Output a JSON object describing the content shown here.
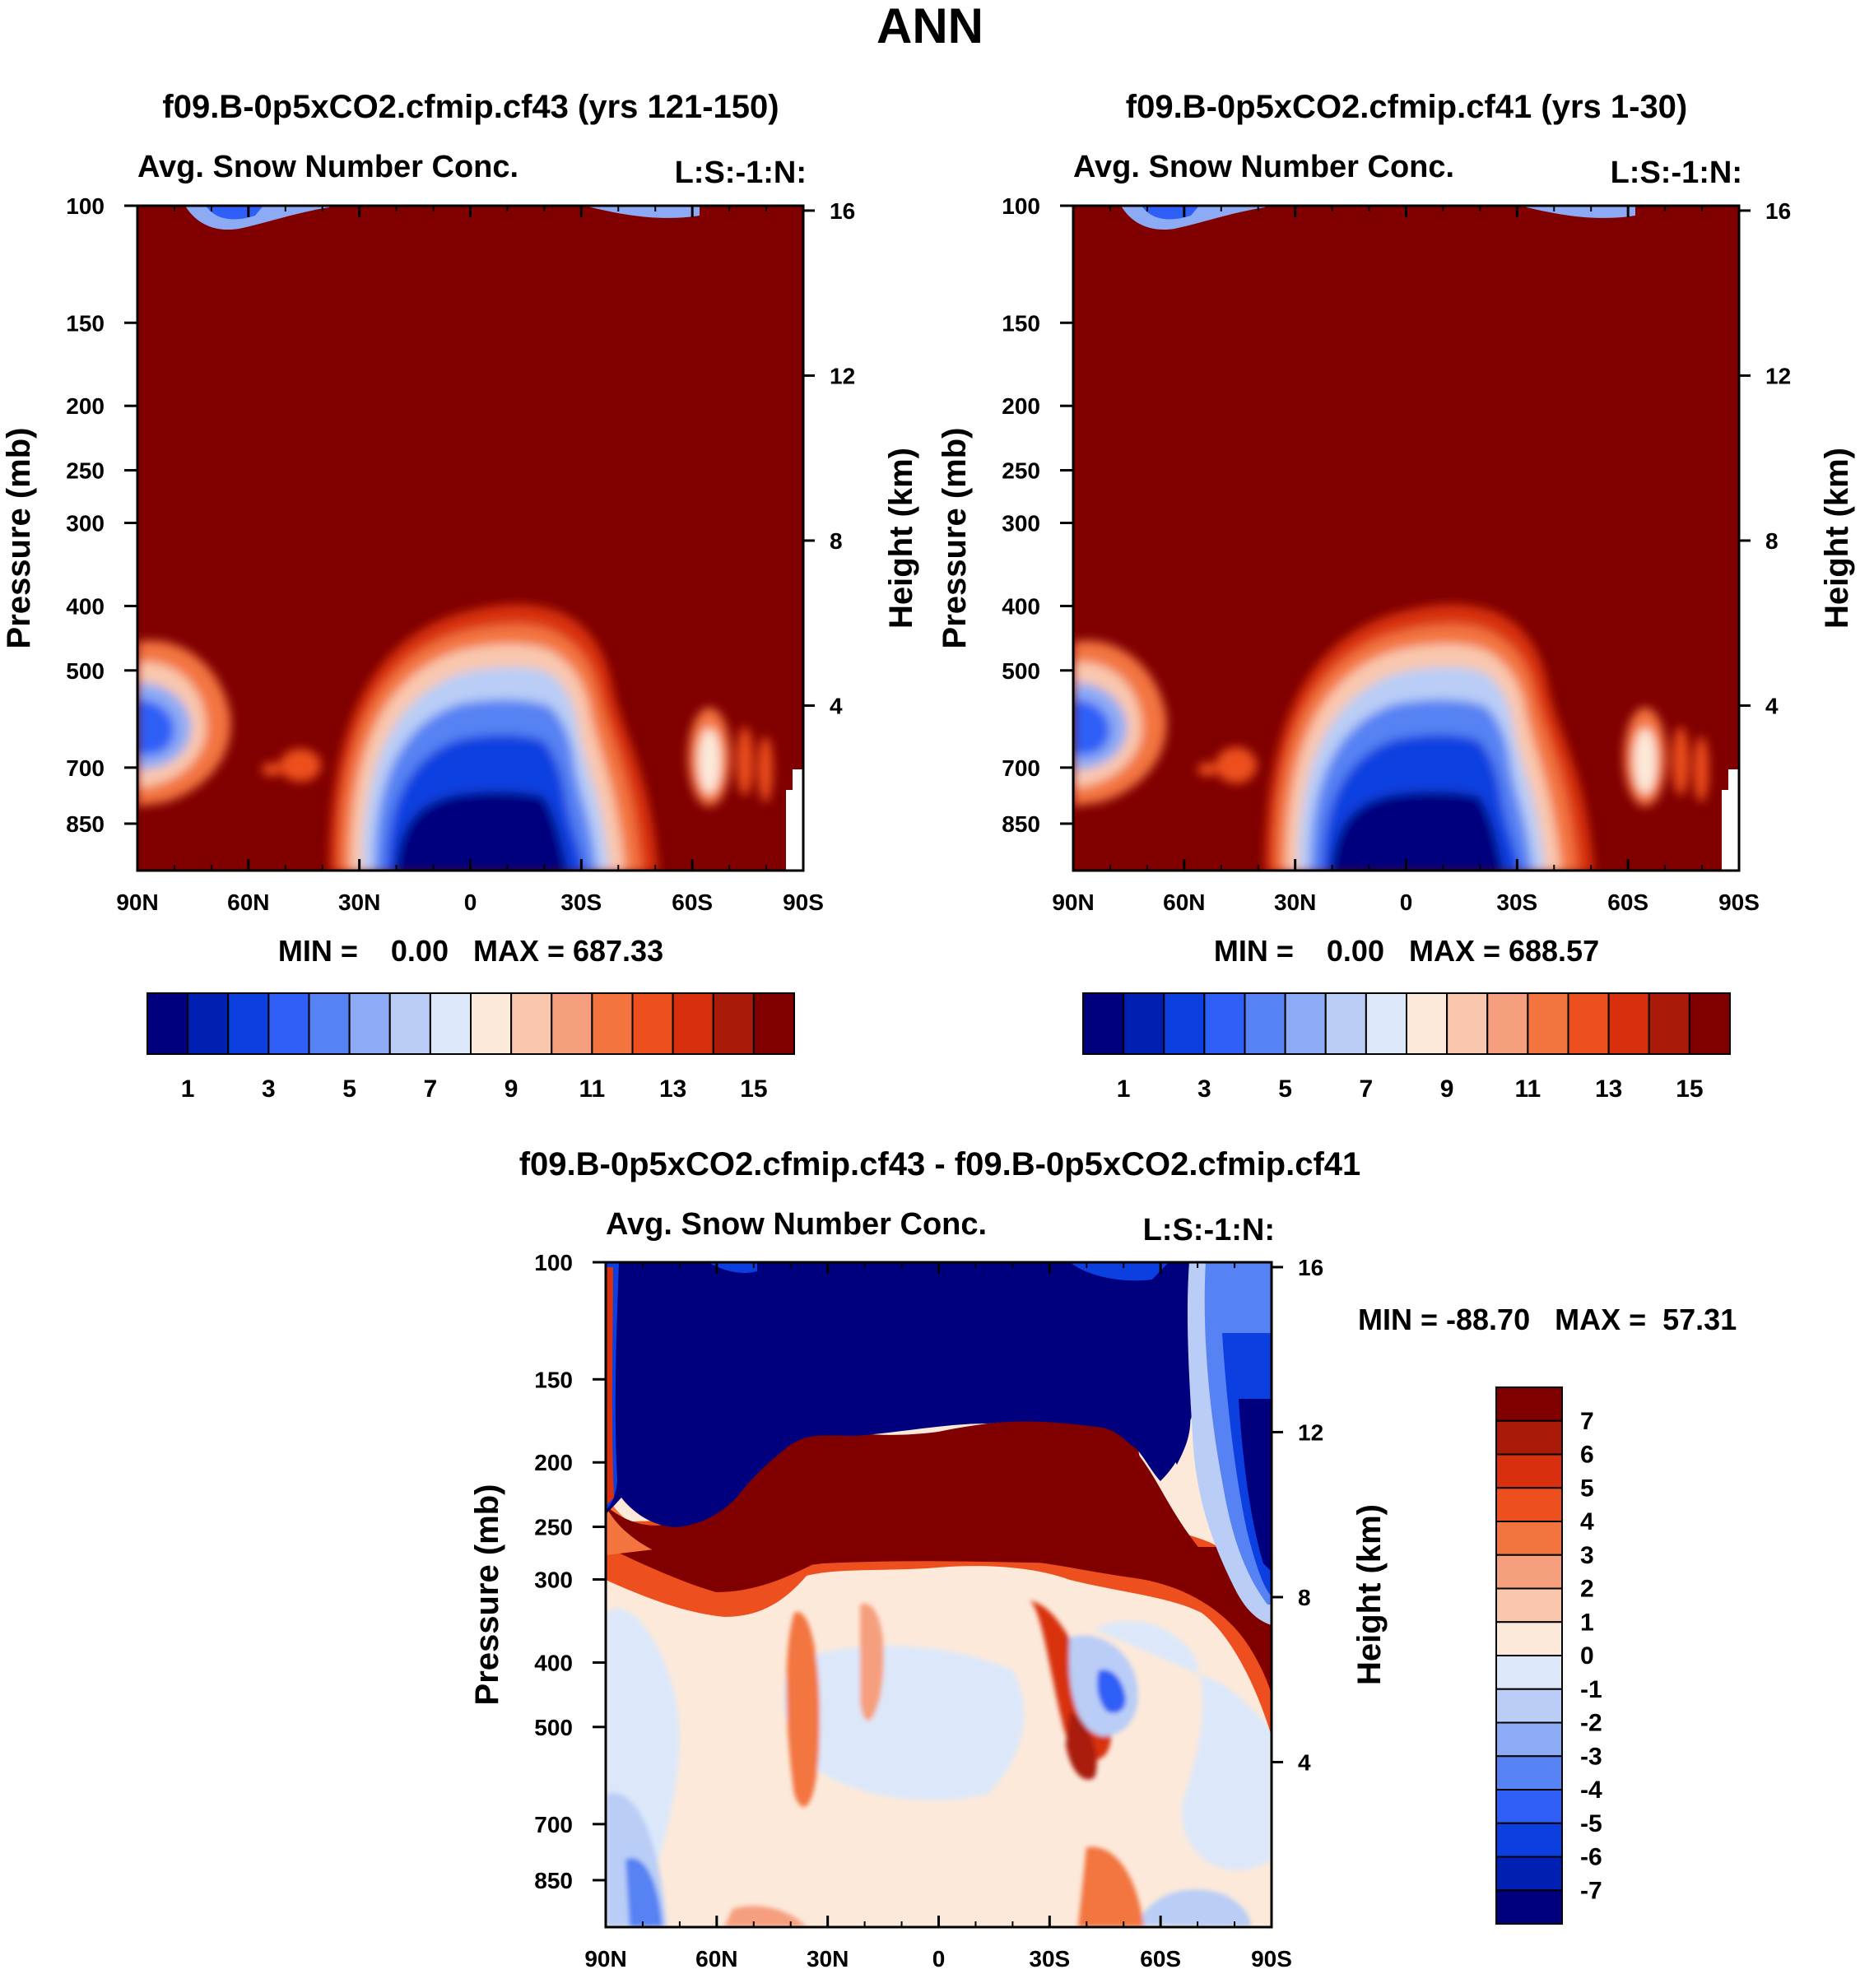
{
  "figure_title": "ANN",
  "palette": {
    "abs": [
      "#00007F",
      "#0020B4",
      "#0B3FE0",
      "#2F5FF7",
      "#5782F3",
      "#8DAAF4",
      "#B9CDF6",
      "#DCE8FA",
      "#FCE9DA",
      "#F9C7AE",
      "#F69F7E",
      "#F3743F",
      "#ED4F1E",
      "#D8300E",
      "#AA1A08",
      "#800000"
    ],
    "diff": [
      "#00007F",
      "#0020B4",
      "#0B3FE0",
      "#2F5FF7",
      "#5782F3",
      "#8DAAF4",
      "#B9CDF6",
      "#DCE8FA",
      "#FCE9DA",
      "#F9C7AE",
      "#F69F7E",
      "#F3743F",
      "#ED4F1E",
      "#D8300E",
      "#AA1A08",
      "#800000"
    ]
  },
  "chart_data": [
    {
      "id": "panel1",
      "type": "heatmap",
      "title": "f09.B-0p5xCO2.cfmip.cf43 (yrs 121-150)",
      "subtitle_left": "Avg. Snow Number Conc.",
      "subtitle_right": "L:S:-1:N:",
      "xlabel": "",
      "ylabel": "Pressure (mb)",
      "y2label": "Height (km)",
      "xticks": [
        "90N",
        "60N",
        "30N",
        "0",
        "30S",
        "60S",
        "90S"
      ],
      "yticks": [
        "100",
        "150",
        "200",
        "250",
        "300",
        "400",
        "500",
        "700",
        "850"
      ],
      "y2ticks": [
        "16",
        "12",
        "8",
        "4"
      ],
      "minmax": "MIN =    0.00   MAX = 687.33",
      "colorbar_labels": [
        "1",
        "3",
        "5",
        "7",
        "9",
        "11",
        "13",
        "15"
      ],
      "levels": [
        1,
        2,
        3,
        4,
        5,
        6,
        7,
        8,
        9,
        10,
        11,
        12,
        13,
        14,
        15
      ],
      "ylim": [
        100,
        1000
      ],
      "xlim": [
        90,
        -90
      ]
    },
    {
      "id": "panel2",
      "type": "heatmap",
      "title": "f09.B-0p5xCO2.cfmip.cf41 (yrs 1-30)",
      "subtitle_left": "Avg. Snow Number Conc.",
      "subtitle_right": "L:S:-1:N:",
      "xlabel": "",
      "ylabel": "Pressure (mb)",
      "y2label": "Height (km)",
      "xticks": [
        "90N",
        "60N",
        "30N",
        "0",
        "30S",
        "60S",
        "90S"
      ],
      "yticks": [
        "100",
        "150",
        "200",
        "250",
        "300",
        "400",
        "500",
        "700",
        "850"
      ],
      "y2ticks": [
        "16",
        "12",
        "8",
        "4"
      ],
      "minmax": "MIN =    0.00   MAX = 688.57",
      "colorbar_labels": [
        "1",
        "3",
        "5",
        "7",
        "9",
        "11",
        "13",
        "15"
      ],
      "levels": [
        1,
        2,
        3,
        4,
        5,
        6,
        7,
        8,
        9,
        10,
        11,
        12,
        13,
        14,
        15
      ],
      "ylim": [
        100,
        1000
      ],
      "xlim": [
        90,
        -90
      ]
    },
    {
      "id": "panel3",
      "type": "heatmap",
      "title": "f09.B-0p5xCO2.cfmip.cf43 - f09.B-0p5xCO2.cfmip.cf41",
      "subtitle_left": "Avg. Snow Number Conc.",
      "subtitle_right": "L:S:-1:N:",
      "xlabel": "",
      "ylabel": "Pressure (mb)",
      "y2label": "Height (km)",
      "xticks": [
        "90N",
        "60N",
        "30N",
        "0",
        "30S",
        "60S",
        "90S"
      ],
      "yticks": [
        "100",
        "150",
        "200",
        "250",
        "300",
        "400",
        "500",
        "700",
        "850"
      ],
      "y2ticks": [
        "16",
        "12",
        "8",
        "4"
      ],
      "minmax": "MIN = -88.70   MAX =  57.31",
      "colorbar_labels": [
        "7",
        "6",
        "5",
        "4",
        "3",
        "2",
        "1",
        "0",
        "-1",
        "-2",
        "-3",
        "-4",
        "-5",
        "-6",
        "-7"
      ],
      "levels": [
        -7,
        -6,
        -5,
        -4,
        -3,
        -2,
        -1,
        0,
        1,
        2,
        3,
        4,
        5,
        6,
        7
      ],
      "ylim": [
        100,
        1000
      ],
      "xlim": [
        90,
        -90
      ]
    }
  ]
}
